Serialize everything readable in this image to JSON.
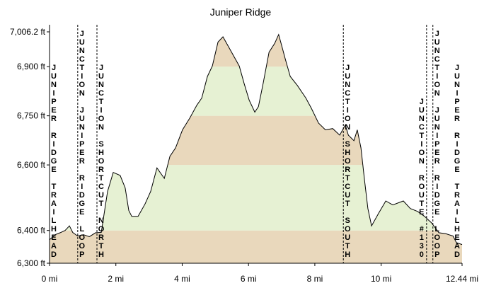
{
  "chart_data": {
    "type": "area",
    "title": "Juniper Ridge",
    "x": [
      0,
      0.17,
      0.32,
      0.47,
      0.6,
      0.7,
      0.85,
      1.02,
      1.2,
      1.39,
      1.56,
      1.75,
      1.92,
      2.13,
      2.28,
      2.39,
      2.48,
      2.67,
      2.88,
      3.05,
      3.24,
      3.46,
      3.63,
      3.8,
      4.01,
      4.23,
      4.44,
      4.59,
      4.76,
      4.91,
      5.08,
      5.23,
      5.38,
      5.55,
      5.72,
      5.87,
      6.02,
      6.19,
      6.3,
      6.44,
      6.62,
      6.79,
      6.91,
      7.0,
      7.11,
      7.26,
      7.47,
      7.73,
      7.9,
      8.11,
      8.32,
      8.54,
      8.75,
      8.92,
      9.01,
      9.18,
      9.28,
      9.39,
      9.5,
      9.6,
      9.71,
      9.92,
      10.14,
      10.35,
      10.67,
      10.88,
      11.1,
      11.31,
      11.52,
      11.74,
      11.95,
      12.17,
      12.27,
      12.44
    ],
    "values": [
      6372,
      6387,
      6393,
      6400,
      6414,
      6394,
      6383,
      6387,
      6381,
      6393,
      6394,
      6519,
      6577,
      6568,
      6530,
      6461,
      6443,
      6443,
      6481,
      6519,
      6591,
      6559,
      6626,
      6652,
      6707,
      6743,
      6782,
      6804,
      6870,
      6902,
      6975,
      6991,
      6964,
      6933,
      6902,
      6848,
      6798,
      6761,
      6778,
      6848,
      6944,
      6971,
      6998,
      6964,
      6923,
      6870,
      6843,
      6804,
      6772,
      6728,
      6707,
      6711,
      6691,
      6722,
      6691,
      6674,
      6707,
      6652,
      6553,
      6467,
      6414,
      6452,
      6490,
      6478,
      6490,
      6467,
      6458,
      6443,
      6423,
      6393,
      6390,
      6383,
      6363,
      6357
    ],
    "color": "#000000",
    "band_colors": [
      "#e9d8bc",
      "#e6f1d3"
    ],
    "xlim": [
      0,
      12.44
    ],
    "xticks": [
      {
        "value": 0,
        "label": "0 mi"
      },
      {
        "value": 2,
        "label": "2 mi"
      },
      {
        "value": 4,
        "label": "4 mi"
      },
      {
        "value": 6,
        "label": "6 mi"
      },
      {
        "value": 8,
        "label": "8 mi"
      },
      {
        "value": 10,
        "label": "10 mi"
      },
      {
        "value": 12.44,
        "label": "12.44 mi"
      }
    ],
    "ylim": [
      6300,
      7006.2
    ],
    "yticks": [
      {
        "value": 6300,
        "label": "6,300 ft"
      },
      {
        "value": 6400,
        "label": "6,400 ft"
      },
      {
        "value": 6600,
        "label": "6,600 ft"
      },
      {
        "value": 6750,
        "label": "6,750 ft"
      },
      {
        "value": 6900,
        "label": "6,900 ft"
      },
      {
        "value": 7006.2,
        "label": "7,006.2 ft"
      }
    ],
    "markers": [
      {
        "label": "JUNIPER RIDGE TRAILHEAD",
        "x": 0
      },
      {
        "label": "JUNCTION JUNIPER RIDGE LOOP",
        "x": 0.85
      },
      {
        "label": "JUNCTION SHORTCUT NORTH",
        "x": 1.43
      },
      {
        "label": "JUNCTION SHORTCUT SOUTH",
        "x": 8.86
      },
      {
        "label": "JUNCTION ROUTE #130",
        "x": 11.37
      },
      {
        "label": "JUNCTION JUNIPER RIDGE LOOP",
        "x": 11.56
      },
      {
        "label": "JUNIPER RIDGE TRAILHEAD",
        "x": 12.44
      }
    ]
  }
}
